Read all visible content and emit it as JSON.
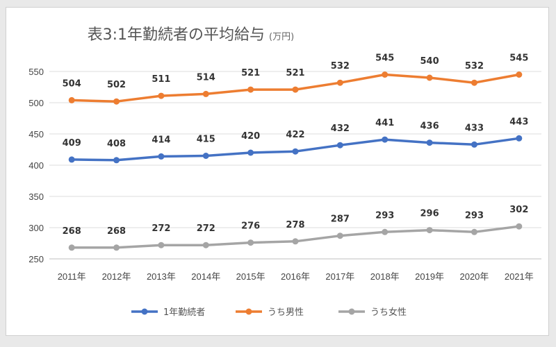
{
  "chart_data": {
    "type": "line",
    "title": "表3:1年勤続者の平均給与",
    "unit": "(万円)",
    "xlabel": "",
    "ylabel": "",
    "categories": [
      "2011年",
      "2012年",
      "2013年",
      "2014年",
      "2015年",
      "2016年",
      "2017年",
      "2018年",
      "2019年",
      "2020年",
      "2021年"
    ],
    "ylim": [
      250,
      550
    ],
    "yticks": [
      250,
      300,
      350,
      400,
      450,
      500,
      550
    ],
    "grid": true,
    "legend_position": "bottom",
    "series": [
      {
        "name": "1年勤続者",
        "color": "#4472c4",
        "values": [
          409,
          408,
          414,
          415,
          420,
          422,
          432,
          441,
          436,
          433,
          443
        ]
      },
      {
        "name": "うち男性",
        "color": "#ed7d31",
        "values": [
          504,
          502,
          511,
          514,
          521,
          521,
          532,
          545,
          540,
          532,
          545
        ]
      },
      {
        "name": "うち女性",
        "color": "#a5a5a5",
        "values": [
          268,
          268,
          272,
          272,
          276,
          278,
          287,
          293,
          296,
          293,
          302
        ]
      }
    ]
  }
}
